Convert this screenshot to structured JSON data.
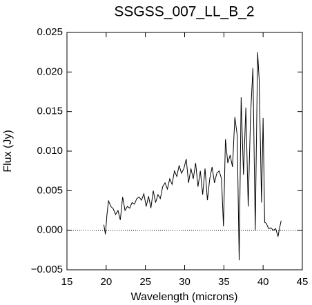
{
  "chart_data": {
    "type": "line",
    "title": "SSGSS_007_LL_B_2",
    "xlabel": "Wavelength (microns)",
    "ylabel": "Flux (Jy)",
    "xlim": [
      15,
      45
    ],
    "xticks": [
      15,
      20,
      25,
      30,
      35,
      40,
      45
    ],
    "ylim": [
      -0.005,
      0.025
    ],
    "yticks": [
      {
        "value": -0.005,
        "label": "−0.005"
      },
      {
        "value": 0,
        "label": "0.000"
      },
      0.005,
      {
        "value": 0.01,
        "label": "0.010"
      },
      0.015,
      {
        "value": 0.02,
        "label": "0.020"
      },
      0.025
    ],
    "reference_line": 0,
    "color": "#000000",
    "x": [
      19.7,
      19.9,
      20.1,
      20.3,
      20.6,
      20.9,
      21.2,
      21.5,
      21.8,
      22.1,
      22.4,
      22.7,
      23.0,
      23.3,
      23.6,
      23.9,
      24.2,
      24.5,
      24.8,
      25.1,
      25.4,
      25.7,
      26.0,
      26.3,
      26.6,
      26.9,
      27.2,
      27.5,
      27.8,
      28.1,
      28.4,
      28.7,
      29.0,
      29.3,
      29.6,
      29.9,
      30.2,
      30.5,
      30.8,
      31.1,
      31.4,
      31.7,
      32.0,
      32.3,
      32.6,
      32.9,
      33.2,
      33.5,
      33.8,
      34.1,
      34.4,
      34.7,
      34.95,
      35.2,
      35.5,
      35.8,
      36.1,
      36.4,
      36.7,
      36.95,
      37.2,
      37.5,
      37.8,
      38.1,
      38.4,
      38.7,
      39.0,
      39.3,
      39.5,
      39.8,
      40.0,
      40.2,
      40.4,
      40.7,
      41.0,
      41.3,
      41.6,
      41.9,
      42.1,
      42.3
    ],
    "series": [
      {
        "name": "flux",
        "values": [
          0.0007,
          -0.0005,
          0.002,
          0.0037,
          0.003,
          0.0027,
          0.002,
          0.0025,
          0.0013,
          0.0042,
          0.0025,
          0.003,
          0.0028,
          0.0035,
          0.0033,
          0.004,
          0.0042,
          0.0038,
          0.0046,
          0.003,
          0.0043,
          0.0028,
          0.005,
          0.0035,
          0.0045,
          0.004,
          0.0055,
          0.006,
          0.0052,
          0.0065,
          0.0058,
          0.0075,
          0.0068,
          0.0082,
          0.0072,
          0.0078,
          0.009,
          0.006,
          0.0078,
          0.0065,
          0.0085,
          0.0055,
          0.0075,
          0.0045,
          0.0078,
          0.0038,
          0.0065,
          0.008,
          0.006,
          0.0072,
          0.0075,
          0.0065,
          0.0005,
          0.0115,
          0.0085,
          0.0095,
          0.008,
          0.0143,
          0.012,
          -0.0038,
          0.0168,
          0.007,
          0.0155,
          0.003,
          0.0145,
          0.0205,
          0.0,
          0.0225,
          0.019,
          0.0035,
          0.0142,
          0.001,
          0.0009,
          0.0002,
          0.0003,
          0.0,
          0.0002,
          -0.0008,
          0.0003,
          0.0012
        ]
      }
    ]
  }
}
